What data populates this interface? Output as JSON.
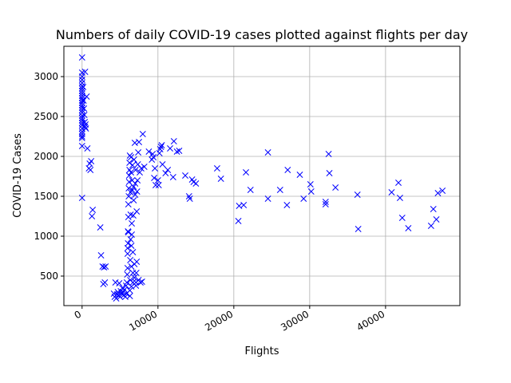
{
  "chart_data": {
    "type": "scatter",
    "title": "Numbers of daily COVID-19 cases plotted against flights per day",
    "xlabel": "Flights",
    "ylabel": "COVID-19 Cases",
    "xlim": [
      -2400,
      49800
    ],
    "ylim": [
      130,
      3380
    ],
    "xticks": [
      0,
      10000,
      20000,
      30000,
      40000
    ],
    "xtick_labels": [
      "0",
      "10000",
      "20000",
      "30000",
      "40000"
    ],
    "yticks": [
      500,
      1000,
      1500,
      2000,
      2500,
      3000
    ],
    "ytick_labels": [
      "500",
      "1000",
      "1500",
      "2000",
      "2500",
      "3000"
    ],
    "grid": true,
    "marker": "x",
    "color": "#0000ff",
    "points": [
      [
        0,
        3240
      ],
      [
        0,
        3050
      ],
      [
        0,
        3000
      ],
      [
        0,
        2960
      ],
      [
        0,
        2920
      ],
      [
        0,
        2880
      ],
      [
        0,
        2850
      ],
      [
        0,
        2820
      ],
      [
        0,
        2790
      ],
      [
        0,
        2760
      ],
      [
        0,
        2730
      ],
      [
        0,
        2700
      ],
      [
        0,
        2670
      ],
      [
        0,
        2640
      ],
      [
        0,
        2610
      ],
      [
        0,
        2580
      ],
      [
        0,
        2550
      ],
      [
        0,
        2510
      ],
      [
        0,
        2480
      ],
      [
        0,
        2450
      ],
      [
        0,
        2420
      ],
      [
        0,
        2390
      ],
      [
        0,
        2350
      ],
      [
        0,
        2310
      ],
      [
        0,
        2280
      ],
      [
        0,
        2250
      ],
      [
        0,
        2230
      ],
      [
        0,
        2130
      ],
      [
        0,
        1480
      ],
      [
        150,
        2870
      ],
      [
        200,
        2700
      ],
      [
        250,
        2600
      ],
      [
        300,
        2520
      ],
      [
        350,
        2430
      ],
      [
        400,
        3060
      ],
      [
        400,
        2370
      ],
      [
        450,
        2400
      ],
      [
        500,
        2350
      ],
      [
        600,
        2750
      ],
      [
        700,
        2100
      ],
      [
        900,
        1850
      ],
      [
        1000,
        1910
      ],
      [
        1100,
        1830
      ],
      [
        1200,
        1940
      ],
      [
        1300,
        1250
      ],
      [
        1400,
        1330
      ],
      [
        2400,
        1110
      ],
      [
        2500,
        760
      ],
      [
        2700,
        620
      ],
      [
        2800,
        400
      ],
      [
        2900,
        610
      ],
      [
        3000,
        420
      ],
      [
        3100,
        620
      ],
      [
        4200,
        280
      ],
      [
        4300,
        240
      ],
      [
        4400,
        420
      ],
      [
        4500,
        220
      ],
      [
        4600,
        270
      ],
      [
        4700,
        300
      ],
      [
        4800,
        260
      ],
      [
        4900,
        410
      ],
      [
        5000,
        240
      ],
      [
        5100,
        310
      ],
      [
        5200,
        280
      ],
      [
        5300,
        350
      ],
      [
        5400,
        300
      ],
      [
        5500,
        260
      ],
      [
        5600,
        330
      ],
      [
        5700,
        240
      ],
      [
        5800,
        380
      ],
      [
        5850,
        280
      ],
      [
        5900,
        420
      ],
      [
        5950,
        520
      ],
      [
        6000,
        600
      ],
      [
        6000,
        780
      ],
      [
        6000,
        850
      ],
      [
        6050,
        910
      ],
      [
        6050,
        1060
      ],
      [
        6100,
        1050
      ],
      [
        6100,
        1240
      ],
      [
        6100,
        1400
      ],
      [
        6150,
        1500
      ],
      [
        6150,
        1600
      ],
      [
        6200,
        1680
      ],
      [
        6200,
        1760
      ],
      [
        6250,
        1830
      ],
      [
        6250,
        1920
      ],
      [
        6300,
        2010
      ],
      [
        6300,
        320
      ],
      [
        6300,
        250
      ],
      [
        6350,
        450
      ],
      [
        6350,
        700
      ],
      [
        6400,
        960
      ],
      [
        6400,
        1270
      ],
      [
        6400,
        1550
      ],
      [
        6450,
        1800
      ],
      [
        6450,
        1990
      ],
      [
        6500,
        370
      ],
      [
        6500,
        620
      ],
      [
        6500,
        880
      ],
      [
        6550,
        1020
      ],
      [
        6550,
        1160
      ],
      [
        6600,
        1580
      ],
      [
        6600,
        1700
      ],
      [
        6650,
        1890
      ],
      [
        6700,
        420
      ],
      [
        6700,
        540
      ],
      [
        6700,
        800
      ],
      [
        6750,
        1260
      ],
      [
        6800,
        1450
      ],
      [
        6800,
        1620
      ],
      [
        6850,
        1960
      ],
      [
        6900,
        480
      ],
      [
        6900,
        650
      ],
      [
        6950,
        2170
      ],
      [
        7000,
        1520
      ],
      [
        7000,
        1660
      ],
      [
        7050,
        1830
      ],
      [
        7100,
        420
      ],
      [
        7100,
        380
      ],
      [
        7150,
        540
      ],
      [
        7200,
        680
      ],
      [
        7200,
        1310
      ],
      [
        7250,
        1560
      ],
      [
        7300,
        1700
      ],
      [
        7350,
        1900
      ],
      [
        7400,
        2050
      ],
      [
        7450,
        450
      ],
      [
        7500,
        2180
      ],
      [
        7600,
        1800
      ],
      [
        7700,
        420
      ],
      [
        7800,
        1850
      ],
      [
        7900,
        430
      ],
      [
        8000,
        2280
      ],
      [
        8200,
        1870
      ],
      [
        8800,
        2060
      ],
      [
        9200,
        1960
      ],
      [
        9300,
        2030
      ],
      [
        9400,
        1990
      ],
      [
        9500,
        1730
      ],
      [
        9600,
        1850
      ],
      [
        9700,
        1640
      ],
      [
        10000,
        1700
      ],
      [
        10100,
        1640
      ],
      [
        10200,
        2040
      ],
      [
        10300,
        2090
      ],
      [
        10400,
        2120
      ],
      [
        10500,
        2140
      ],
      [
        10600,
        1900
      ],
      [
        11000,
        1790
      ],
      [
        11300,
        1830
      ],
      [
        11600,
        2100
      ],
      [
        12000,
        1740
      ],
      [
        12100,
        2190
      ],
      [
        12500,
        2060
      ],
      [
        12800,
        2070
      ],
      [
        13600,
        1760
      ],
      [
        14100,
        1500
      ],
      [
        14200,
        1470
      ],
      [
        14500,
        1710
      ],
      [
        14700,
        1680
      ],
      [
        15000,
        1660
      ],
      [
        17800,
        1850
      ],
      [
        18300,
        1720
      ],
      [
        20600,
        1190
      ],
      [
        20700,
        1380
      ],
      [
        21300,
        1390
      ],
      [
        21600,
        1800
      ],
      [
        22200,
        1580
      ],
      [
        24500,
        1470
      ],
      [
        24500,
        2050
      ],
      [
        26100,
        1580
      ],
      [
        27000,
        1390
      ],
      [
        27100,
        1830
      ],
      [
        28700,
        1770
      ],
      [
        29200,
        1470
      ],
      [
        30100,
        1650
      ],
      [
        30200,
        1560
      ],
      [
        32100,
        1400
      ],
      [
        32100,
        1430
      ],
      [
        32500,
        2030
      ],
      [
        32600,
        1790
      ],
      [
        33400,
        1610
      ],
      [
        36300,
        1520
      ],
      [
        36400,
        1090
      ],
      [
        40800,
        1550
      ],
      [
        41700,
        1670
      ],
      [
        41900,
        1480
      ],
      [
        42200,
        1230
      ],
      [
        43000,
        1100
      ],
      [
        46000,
        1130
      ],
      [
        46300,
        1340
      ],
      [
        46700,
        1210
      ],
      [
        46900,
        1540
      ],
      [
        47500,
        1570
      ]
    ]
  }
}
